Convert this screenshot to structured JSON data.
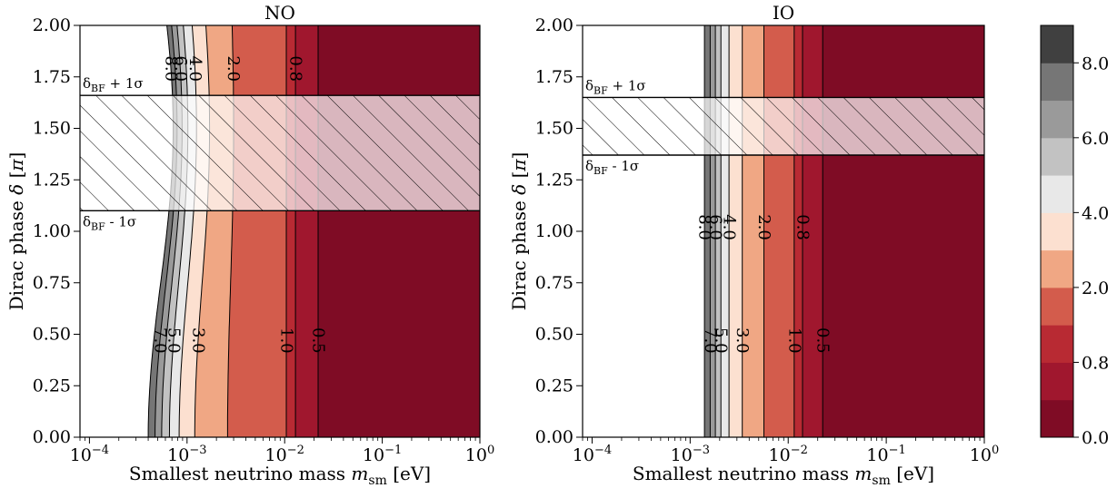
{
  "chart_data": [
    {
      "type": "contour",
      "title": "NO",
      "xlabel": "Smallest neutrino mass m_sm [eV]",
      "ylabel": "Dirac phase δ [π]",
      "x_scale": "log",
      "xlim": [
        8e-05,
        1
      ],
      "ylim": [
        0,
        2
      ],
      "x_ticks": [
        "10^-4",
        "10^-3",
        "10^-2",
        "10^-1",
        "10^0"
      ],
      "y_ticks": [
        "0.00",
        "0.25",
        "0.50",
        "0.75",
        "1.00",
        "1.25",
        "1.50",
        "1.75",
        "2.00"
      ],
      "contour_boundaries": [
        {
          "level": 8.0,
          "m_at_delta_0": 0.0004,
          "m_at_delta_1_5": 0.00072
        },
        {
          "level": 7.0,
          "m_at_delta_0": 0.00047,
          "m_at_delta_1_5": 0.00079
        },
        {
          "level": 6.0,
          "m_at_delta_0": 0.00055,
          "m_at_delta_1_5": 0.00089
        },
        {
          "level": 5.0,
          "m_at_delta_0": 0.00066,
          "m_at_delta_1_5": 0.00102
        },
        {
          "level": 4.0,
          "m_at_delta_0": 0.00083,
          "m_at_delta_1_5": 0.00125
        },
        {
          "level": 3.0,
          "m_at_delta_0": 0.0012,
          "m_at_delta_1_5": 0.0017
        },
        {
          "level": 2.0,
          "m_at_delta_0": 0.0026,
          "m_at_delta_1_5": 0.003
        },
        {
          "level": 1.0,
          "m_at_delta_0": 0.0104,
          "m_at_delta_1_5": 0.0104
        },
        {
          "level": 0.8,
          "m_at_delta_0": 0.0129,
          "m_at_delta_1_5": 0.0129
        },
        {
          "level": 0.5,
          "m_at_delta_0": 0.022,
          "m_at_delta_1_5": 0.022
        }
      ],
      "band": {
        "lower": 1.1,
        "upper": 1.66,
        "upper_label": "δ_BF + 1σ",
        "lower_label": "δ_BF - 1σ"
      },
      "labels_bottom": [
        "7.0",
        "5.0",
        "3.0",
        "1.0",
        "0.5"
      ],
      "labels_top": [
        "8.0",
        "6.0",
        "4.0",
        "2.0",
        "0.8"
      ]
    },
    {
      "type": "contour",
      "title": "IO",
      "xlabel": "Smallest neutrino mass m_sm [eV]",
      "ylabel": "Dirac phase δ [π]",
      "x_scale": "log",
      "xlim": [
        8e-05,
        1
      ],
      "ylim": [
        0,
        2
      ],
      "x_ticks": [
        "10^-4",
        "10^-3",
        "10^-2",
        "10^-1",
        "10^0"
      ],
      "y_ticks": [
        "0.00",
        "0.25",
        "0.50",
        "0.75",
        "1.00",
        "1.25",
        "1.50",
        "1.75",
        "2.00"
      ],
      "contour_boundaries": [
        {
          "level": 8.0,
          "m": 0.0014
        },
        {
          "level": 7.0,
          "m": 0.0016
        },
        {
          "level": 6.0,
          "m": 0.00181
        },
        {
          "level": 5.0,
          "m": 0.00206
        },
        {
          "level": 4.0,
          "m": 0.00249
        },
        {
          "level": 3.0,
          "m": 0.0034
        },
        {
          "level": 2.0,
          "m": 0.00565
        },
        {
          "level": 1.0,
          "m": 0.0115
        },
        {
          "level": 0.8,
          "m": 0.014
        },
        {
          "level": 0.5,
          "m": 0.0225
        }
      ],
      "band": {
        "lower": 1.37,
        "upper": 1.65,
        "upper_label": "δ_BF + 1σ",
        "lower_label": "δ_BF - 1σ"
      },
      "labels_bottom": [
        "7.0",
        "5.0",
        "3.0",
        "1.0",
        "0.5"
      ],
      "labels_top": [
        "8.0",
        "6.0",
        "4.0",
        "2.0",
        "0.8"
      ]
    }
  ],
  "colorbar": {
    "tick_labels": [
      "8.0",
      "6.0",
      "4.0",
      "2.0",
      "0.8",
      "0.0"
    ],
    "levels": [
      0.0,
      0.5,
      0.8,
      1.0,
      2.0,
      3.0,
      4.0,
      5.0,
      6.0,
      7.0,
      8.0
    ],
    "colors": [
      "#7f0c25",
      "#a0172e",
      "#b82a33",
      "#d35c4c",
      "#f0a784",
      "#fce0d0",
      "#e8e8e8",
      "#c2c2c2",
      "#9a9a9a",
      "#767676",
      "#404040"
    ]
  }
}
